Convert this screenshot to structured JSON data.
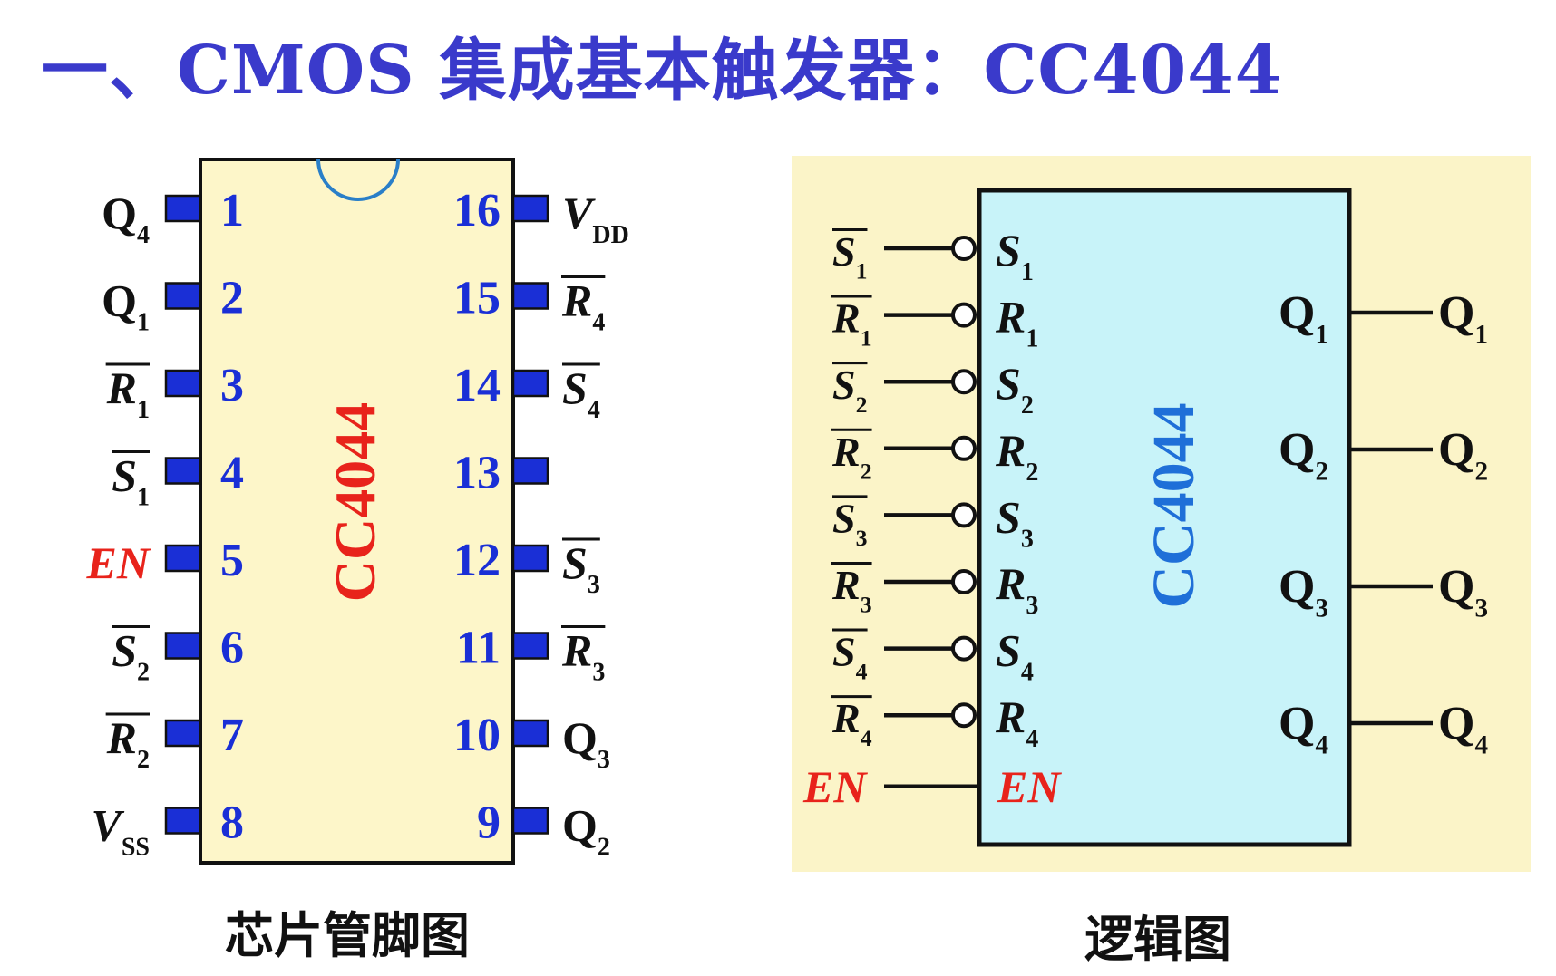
{
  "title": "一、CMOS 集成基本触发器：CC4044",
  "colors": {
    "title": "#3a3acb",
    "chip_body": "#fdf6c9",
    "logic_bg": "#fbf4c8",
    "logic_box": "#c8f3f9",
    "pin_number": "#1a2fd6",
    "pin": "#1a2fd6",
    "label": "#111111",
    "en_label": "#e8231b",
    "chip_name_pinout": "#e8231b",
    "chip_name_logic": "#1f6fd8",
    "notch": "#2a7fc8"
  },
  "pinout": {
    "chip_name": "CC4044",
    "caption": "芯片管脚图",
    "left_pins": [
      {
        "number": "1",
        "base": "Q",
        "sub": "4",
        "overbar": false,
        "italic": false,
        "red": false
      },
      {
        "number": "2",
        "base": "Q",
        "sub": "1",
        "overbar": false,
        "italic": false,
        "red": false
      },
      {
        "number": "3",
        "base": "R",
        "sub": "1",
        "overbar": true,
        "italic": true,
        "red": false
      },
      {
        "number": "4",
        "base": "S",
        "sub": "1",
        "overbar": true,
        "italic": true,
        "red": false
      },
      {
        "number": "5",
        "base": "EN",
        "sub": "",
        "overbar": false,
        "italic": true,
        "red": true
      },
      {
        "number": "6",
        "base": "S",
        "sub": "2",
        "overbar": true,
        "italic": true,
        "red": false
      },
      {
        "number": "7",
        "base": "R",
        "sub": "2",
        "overbar": true,
        "italic": true,
        "red": false
      },
      {
        "number": "8",
        "base": "V",
        "sub": "SS",
        "overbar": false,
        "italic": true,
        "red": false
      }
    ],
    "right_pins": [
      {
        "number": "16",
        "base": "V",
        "sub": "DD",
        "overbar": false,
        "italic": true,
        "red": false
      },
      {
        "number": "15",
        "base": "R",
        "sub": "4",
        "overbar": true,
        "italic": true,
        "red": false
      },
      {
        "number": "14",
        "base": "S",
        "sub": "4",
        "overbar": true,
        "italic": true,
        "red": false
      },
      {
        "number": "13",
        "base": "",
        "sub": "",
        "overbar": false,
        "italic": false,
        "red": false
      },
      {
        "number": "12",
        "base": "S",
        "sub": "3",
        "overbar": true,
        "italic": true,
        "red": false
      },
      {
        "number": "11",
        "base": "R",
        "sub": "3",
        "overbar": true,
        "italic": true,
        "red": false
      },
      {
        "number": "10",
        "base": "Q",
        "sub": "3",
        "overbar": false,
        "italic": false,
        "red": false
      },
      {
        "number": "9",
        "base": "Q",
        "sub": "2",
        "overbar": false,
        "italic": false,
        "red": false
      }
    ]
  },
  "logic": {
    "chip_name": "CC4044",
    "caption": "逻辑图",
    "inputs": [
      {
        "base": "S",
        "sub": "1",
        "inverted": true,
        "red": false
      },
      {
        "base": "R",
        "sub": "1",
        "inverted": true,
        "red": false
      },
      {
        "base": "S",
        "sub": "2",
        "inverted": true,
        "red": false
      },
      {
        "base": "R",
        "sub": "2",
        "inverted": true,
        "red": false
      },
      {
        "base": "S",
        "sub": "3",
        "inverted": true,
        "red": false
      },
      {
        "base": "R",
        "sub": "3",
        "inverted": true,
        "red": false
      },
      {
        "base": "S",
        "sub": "4",
        "inverted": true,
        "red": false
      },
      {
        "base": "R",
        "sub": "4",
        "inverted": true,
        "red": false
      },
      {
        "base": "EN",
        "sub": "",
        "inverted": false,
        "red": true
      }
    ],
    "outputs": [
      {
        "base": "Q",
        "sub": "1"
      },
      {
        "base": "Q",
        "sub": "2"
      },
      {
        "base": "Q",
        "sub": "3"
      },
      {
        "base": "Q",
        "sub": "4"
      }
    ]
  }
}
